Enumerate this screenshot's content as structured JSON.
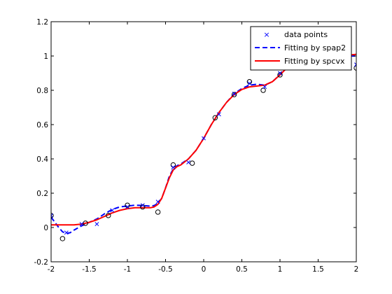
{
  "chart_data": {
    "type": "line",
    "title": "",
    "xlabel": "",
    "ylabel": "",
    "xlim": [
      -2,
      2
    ],
    "ylim": [
      -0.2,
      1.2
    ],
    "xticks": [
      -2,
      -1.5,
      -1,
      -0.5,
      0,
      0.5,
      1,
      1.5,
      2
    ],
    "yticks": [
      -0.2,
      0,
      0.2,
      0.4,
      0.6,
      0.8,
      1,
      1.2
    ],
    "xtick_labels": [
      "-2",
      "-1.5",
      "-1",
      "-0.5",
      "0",
      "0.5",
      "1",
      "1.5",
      "2"
    ],
    "ytick_labels": [
      "-0.2",
      "0",
      "0.2",
      "0.4",
      "0.6",
      "0.8",
      "1",
      "1.2"
    ],
    "grid": false,
    "legend_position": "top-right",
    "legend": [
      {
        "label": "data points",
        "style": "marker",
        "marker": "x",
        "color": "#0000ff"
      },
      {
        "label": "Fitting by spap2",
        "style": "dashed",
        "color": "#0000ff"
      },
      {
        "label": "Fitting by spcvx",
        "style": "solid",
        "color": "#ff0000"
      }
    ],
    "series": [
      {
        "name": "data points",
        "kind": "markers-x",
        "color": "#0000ff",
        "x": [
          -2.0,
          -1.8,
          -1.6,
          -1.4,
          -1.2,
          -1.0,
          -0.8,
          -0.6,
          -0.4,
          -0.2,
          0.0,
          0.2,
          0.4,
          0.6,
          0.8,
          1.0,
          1.2,
          1.4,
          1.6,
          1.8,
          2.0
        ],
        "y": [
          0.07,
          -0.03,
          0.02,
          0.02,
          0.1,
          0.12,
          0.13,
          0.15,
          0.35,
          0.38,
          0.52,
          0.66,
          0.78,
          0.84,
          0.82,
          0.9,
          0.97,
          0.99,
          0.97,
          0.99,
          0.95
        ]
      },
      {
        "name": "circles",
        "kind": "markers-o",
        "color": "#000000",
        "x": [
          -2.0,
          -1.85,
          -1.55,
          -1.25,
          -1.0,
          -0.8,
          -0.6,
          -0.4,
          -0.15,
          0.15,
          0.4,
          0.6,
          0.78,
          1.0,
          1.55,
          2.0
        ],
        "y": [
          0.07,
          -0.065,
          0.025,
          0.07,
          0.13,
          0.12,
          0.09,
          0.365,
          0.375,
          0.64,
          0.775,
          0.85,
          0.8,
          0.89,
          0.94,
          0.93
        ]
      },
      {
        "name": "Fitting by spap2",
        "kind": "dashed-line",
        "color": "#0000ff",
        "x": [
          -2.0,
          -1.95,
          -1.9,
          -1.85,
          -1.8,
          -1.75,
          -1.7,
          -1.6,
          -1.5,
          -1.4,
          -1.3,
          -1.2,
          -1.1,
          -1.0,
          -0.9,
          -0.8,
          -0.7,
          -0.65,
          -0.6,
          -0.55,
          -0.5,
          -0.45,
          -0.4,
          -0.35,
          -0.3,
          -0.2,
          -0.1,
          0.0,
          0.1,
          0.2,
          0.3,
          0.4,
          0.5,
          0.6,
          0.7,
          0.8,
          0.9,
          1.0,
          1.1,
          1.2,
          1.3,
          1.4,
          1.5,
          1.6,
          1.7,
          1.8,
          1.9,
          2.0
        ],
        "y": [
          0.06,
          0.03,
          0.0,
          -0.025,
          -0.035,
          -0.03,
          -0.015,
          0.01,
          0.03,
          0.05,
          0.08,
          0.105,
          0.12,
          0.125,
          0.13,
          0.128,
          0.125,
          0.128,
          0.14,
          0.17,
          0.23,
          0.3,
          0.34,
          0.36,
          0.37,
          0.4,
          0.45,
          0.52,
          0.6,
          0.67,
          0.73,
          0.78,
          0.81,
          0.83,
          0.835,
          0.83,
          0.85,
          0.89,
          0.935,
          0.965,
          0.98,
          0.99,
          0.995,
          0.998,
          1.0,
          1.0,
          1.0,
          1.0
        ]
      },
      {
        "name": "Fitting by spcvx",
        "kind": "solid-line",
        "color": "#ff0000",
        "x": [
          -2.0,
          -1.9,
          -1.8,
          -1.7,
          -1.6,
          -1.5,
          -1.4,
          -1.3,
          -1.2,
          -1.1,
          -1.0,
          -0.9,
          -0.8,
          -0.7,
          -0.65,
          -0.6,
          -0.55,
          -0.5,
          -0.45,
          -0.4,
          -0.35,
          -0.3,
          -0.2,
          -0.1,
          0.0,
          0.1,
          0.2,
          0.3,
          0.4,
          0.5,
          0.6,
          0.7,
          0.8,
          0.9,
          1.0,
          1.1,
          1.2,
          1.3,
          1.4,
          1.5,
          1.6,
          1.7,
          1.8,
          1.9,
          2.0
        ],
        "y": [
          0.015,
          0.015,
          0.015,
          0.015,
          0.02,
          0.03,
          0.045,
          0.065,
          0.085,
          0.1,
          0.11,
          0.115,
          0.115,
          0.115,
          0.12,
          0.135,
          0.17,
          0.23,
          0.29,
          0.335,
          0.355,
          0.365,
          0.4,
          0.45,
          0.52,
          0.6,
          0.67,
          0.73,
          0.775,
          0.805,
          0.82,
          0.825,
          0.83,
          0.85,
          0.89,
          0.935,
          0.965,
          0.98,
          0.99,
          0.995,
          0.998,
          1.0,
          1.0,
          1.005,
          1.01
        ]
      }
    ]
  }
}
